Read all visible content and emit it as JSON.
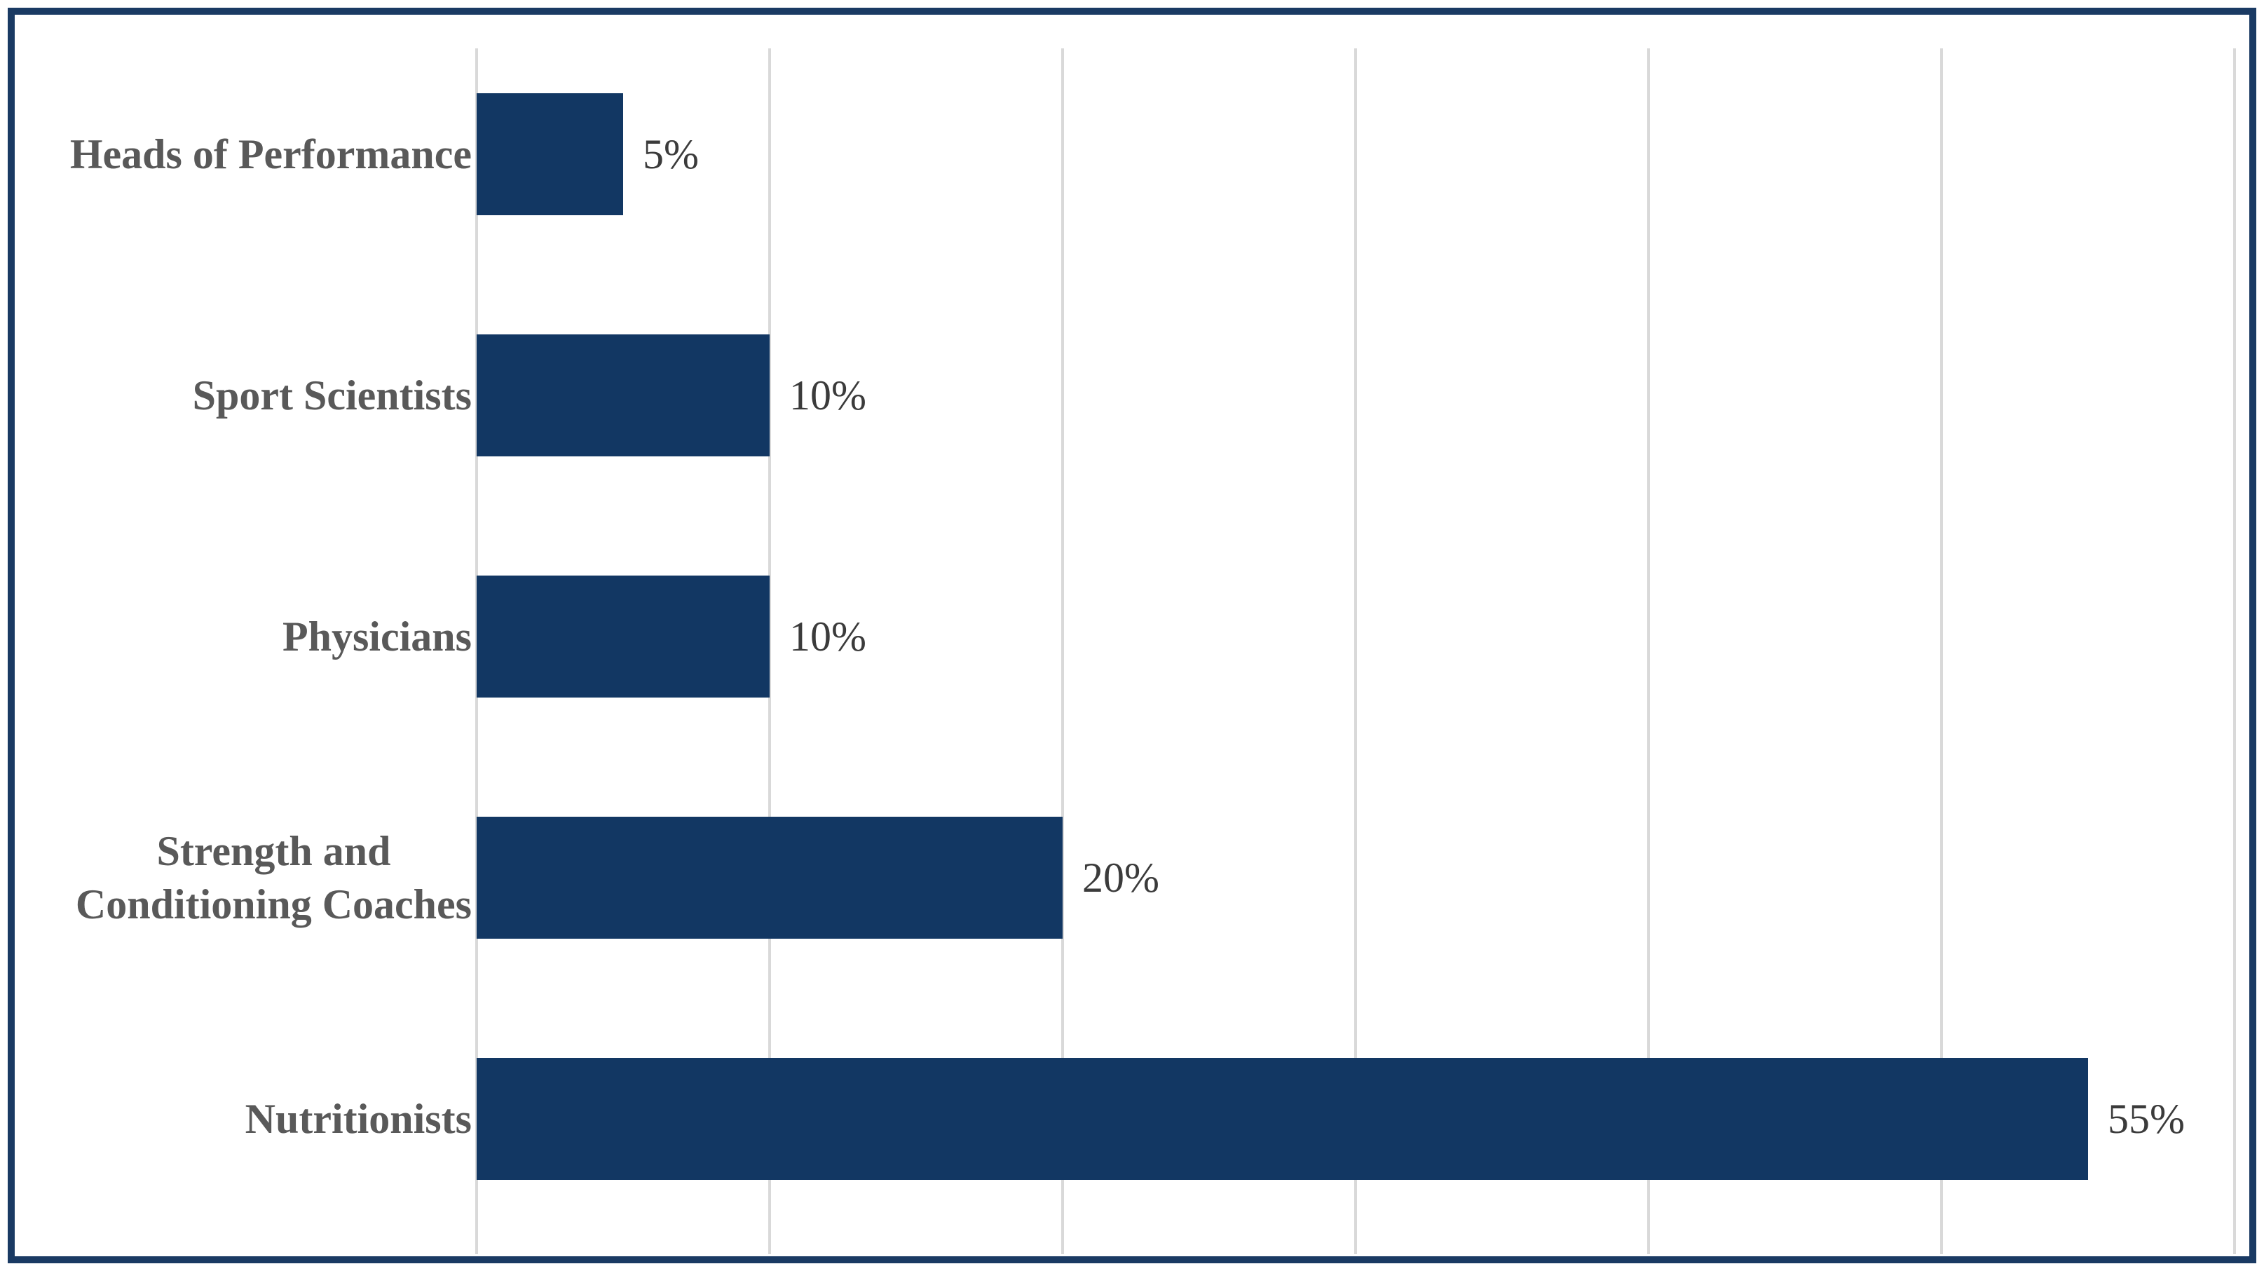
{
  "chart_data": {
    "type": "bar",
    "orientation": "horizontal",
    "title": "",
    "xlabel": "",
    "ylabel": "",
    "categories": [
      "Heads of Performance",
      "Sport Scientists",
      "Physicians",
      "Strength and Conditioning Coaches",
      "Nutritionists"
    ],
    "values": [
      5,
      10,
      10,
      20,
      55
    ],
    "value_labels": [
      "5%",
      "10%",
      "10%",
      "20%",
      "55%"
    ],
    "category_display": [
      {
        "lines": [
          "Heads of Performance"
        ]
      },
      {
        "lines": [
          "Sport Scientists"
        ]
      },
      {
        "lines": [
          "Physicians"
        ]
      },
      {
        "lines": [
          "Strength and",
          "Conditioning Coaches"
        ]
      },
      {
        "lines": [
          "Nutritionists"
        ]
      }
    ],
    "xlim": [
      0,
      60
    ],
    "gridlines": [
      0,
      10,
      20,
      30,
      40,
      50,
      60
    ],
    "gridline_step": 10,
    "grid": "vertical-only",
    "legend_position": "none",
    "axis_tick_labels_visible": false
  },
  "colors": {
    "bar": "#123763",
    "border": "#1A3A63",
    "gridline": "#D9D9D9",
    "category_text": "#595959",
    "value_text": "#3B3B3B",
    "background": "#FFFFFF"
  }
}
